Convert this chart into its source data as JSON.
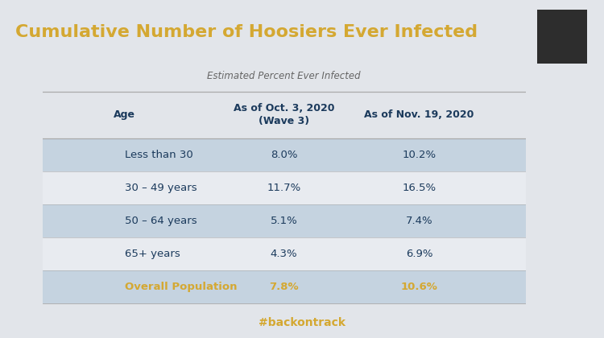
{
  "title": "Cumulative Number of Hoosiers Ever Infected",
  "title_color": "#D4A832",
  "title_bg_color": "#1E4A6B",
  "subtitle": "Estimated Percent Ever Infected",
  "col_headers": [
    "Age",
    "As of Oct. 3, 2020\n(Wave 3)",
    "As of Nov. 19, 2020"
  ],
  "rows": [
    [
      "Less than 30",
      "8.0%",
      "10.2%"
    ],
    [
      "30 – 49 years",
      "11.7%",
      "16.5%"
    ],
    [
      "50 – 64 years",
      "5.1%",
      "7.4%"
    ],
    [
      "65+ years",
      "4.3%",
      "6.9%"
    ],
    [
      "Overall Population",
      "7.8%",
      "10.6%"
    ]
  ],
  "row_shaded": [
    true,
    false,
    true,
    false,
    true
  ],
  "last_row_color": "#D4A832",
  "shaded_color": "#C5D3E0",
  "unshaded_color": "#E8EBF0",
  "main_bg": "#E2E5EA",
  "bottom_bar_color": "#1E3F5C",
  "bottom_text": "#backontrack",
  "bottom_text_color": "#D4A832",
  "header_text_color": "#1B3A5C",
  "data_text_color": "#1B3A5C",
  "subtitle_color": "#666666",
  "line_color": "#aaaaaa",
  "thumbnail_color": "#1a1a1a"
}
